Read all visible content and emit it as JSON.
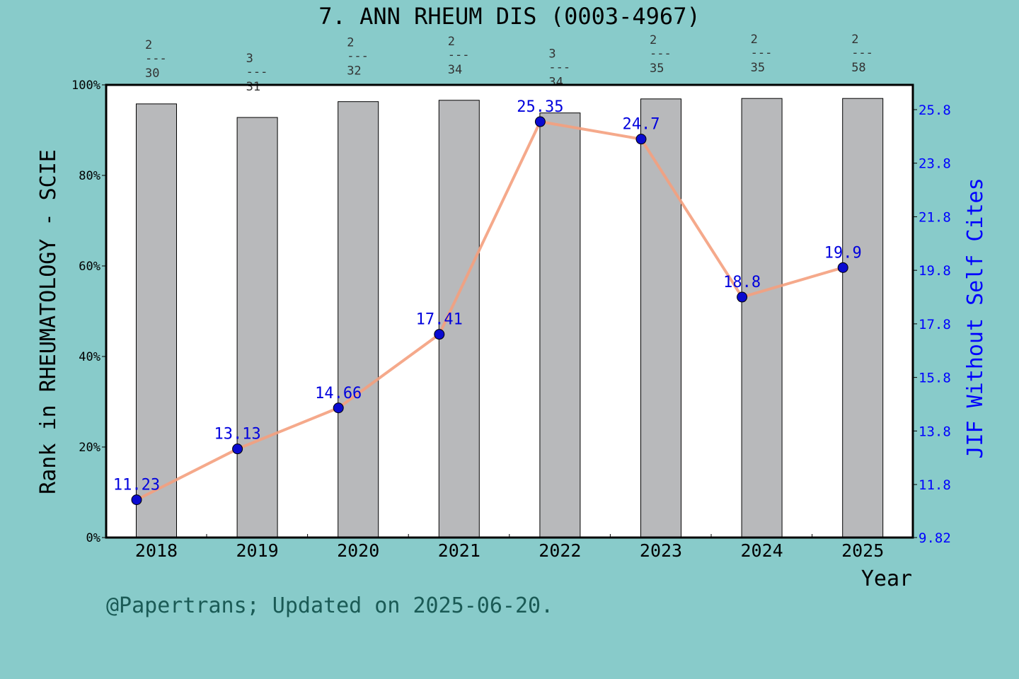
{
  "chart_data": {
    "type": "bar+line",
    "title": "7. ANN RHEUM DIS (0003-4967)",
    "xlabel": "Year",
    "ylabel_left": "Rank in RHEUMATOLOGY - SCIE",
    "ylabel_right": "JIF Without Self Cites",
    "categories": [
      "2018",
      "2019",
      "2020",
      "2021",
      "2022",
      "2023",
      "2024",
      "2025"
    ],
    "left_axis": {
      "ylim": [
        0,
        100
      ],
      "ticks": [
        "0%",
        "20%",
        "40%",
        "60%",
        "80%",
        "100%"
      ]
    },
    "right_axis": {
      "ylim": [
        9.82,
        25.8
      ],
      "ticks": [
        "9.82",
        "11.8",
        "13.8",
        "15.8",
        "17.8",
        "19.8",
        "21.8",
        "23.8",
        "25.8"
      ]
    },
    "bars": {
      "values_percent": [
        95.8,
        92.8,
        96.3,
        96.6,
        93.8,
        96.9,
        97.0,
        97.0
      ],
      "rank_labels": [
        {
          "rank": "2",
          "sep": "---",
          "total": "30"
        },
        {
          "rank": "3",
          "sep": "---",
          "total": "31"
        },
        {
          "rank": "2",
          "sep": "---",
          "total": "32"
        },
        {
          "rank": "2",
          "sep": "---",
          "total": "34"
        },
        {
          "rank": "3",
          "sep": "---",
          "total": "34"
        },
        {
          "rank": "2",
          "sep": "---",
          "total": "35"
        },
        {
          "rank": "2",
          "sep": "---",
          "total": "35"
        },
        {
          "rank": "2",
          "sep": "---",
          "total": "58"
        }
      ],
      "color": "#b8b9bb"
    },
    "line": {
      "values": [
        11.23,
        13.13,
        14.66,
        17.41,
        25.35,
        24.7,
        18.8,
        19.9
      ],
      "labels": [
        "11.23",
        "13.13",
        "14.66",
        "17.41",
        "25.35",
        "24.7",
        "18.8",
        "19.9"
      ],
      "line_color": "#f4a07e",
      "marker_color": "#0a0ad0"
    },
    "background": "#88cbca"
  },
  "footer": "@Papertrans; Updated on 2025-06-20."
}
